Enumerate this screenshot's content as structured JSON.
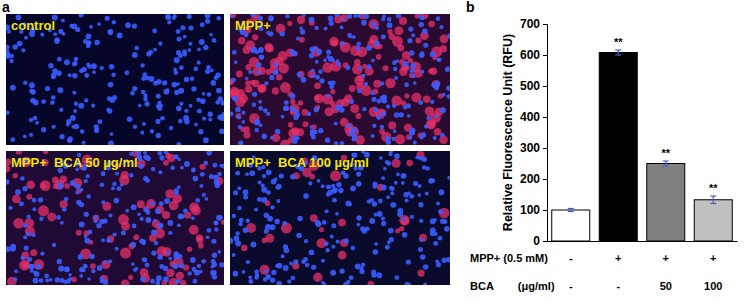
{
  "panel_a": {
    "label": "a",
    "images": [
      "control",
      "MPP+",
      "MPP+  BCA 50 µg/ml",
      "MPP+  BCA 100 µg/ml"
    ]
  },
  "panel_b": {
    "label": "b"
  },
  "chart_data": {
    "type": "bar",
    "y_label": "Relative Fluorescence Unit (RFU)",
    "categories": [
      null,
      null,
      null,
      null
    ],
    "values": [
      100,
      608,
      250,
      133
    ],
    "errors": [
      5,
      8,
      8,
      12
    ],
    "significance": [
      null,
      "**",
      "**",
      "**"
    ],
    "colors": [
      "#ffffff",
      "#000000",
      "#808080",
      "#c0c0c0"
    ],
    "ylim": [
      0,
      700
    ],
    "yticks": [
      0,
      100,
      200,
      300,
      400,
      500,
      600,
      700
    ],
    "grid": false,
    "treatment_rows": [
      {
        "label": "MPP+ (0.5 mM)",
        "values": [
          "-",
          "+",
          "+",
          "+"
        ]
      },
      {
        "label": "BCA        (μg/ml)",
        "values": [
          "-",
          "-",
          "50",
          "100"
        ]
      }
    ]
  }
}
